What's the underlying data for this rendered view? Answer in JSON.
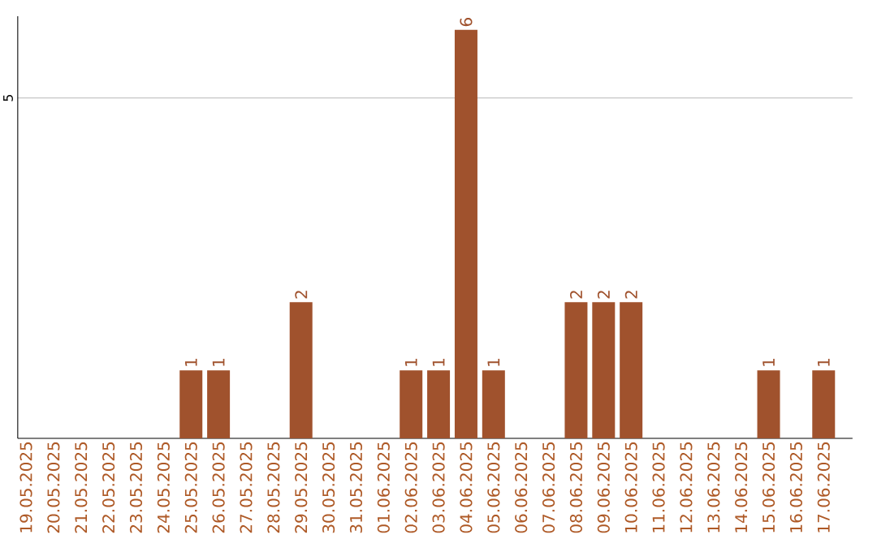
{
  "chart_data": {
    "type": "bar",
    "categories": [
      "19.05.2025",
      "20.05.2025",
      "21.05.2025",
      "22.05.2025",
      "23.05.2025",
      "24.05.2025",
      "25.05.2025",
      "26.05.2025",
      "27.05.2025",
      "28.05.2025",
      "29.05.2025",
      "30.05.2025",
      "31.05.2025",
      "01.06.2025",
      "02.06.2025",
      "03.06.2025",
      "04.06.2025",
      "05.06.2025",
      "06.06.2025",
      "07.06.2025",
      "08.06.2025",
      "09.06.2025",
      "10.06.2025",
      "11.06.2025",
      "12.06.2025",
      "13.06.2025",
      "14.06.2025",
      "15.06.2025",
      "16.06.2025",
      "17.06.2025"
    ],
    "values": [
      0,
      0,
      0,
      0,
      0,
      0,
      1,
      1,
      0,
      0,
      2,
      0,
      0,
      0,
      1,
      1,
      6,
      1,
      0,
      0,
      2,
      2,
      2,
      0,
      0,
      0,
      0,
      1,
      0,
      1
    ],
    "value_labels": [
      null,
      null,
      null,
      null,
      null,
      null,
      "1",
      "1",
      null,
      null,
      "2",
      null,
      null,
      null,
      "1",
      "1",
      "6",
      "1",
      null,
      null,
      "2",
      "2",
      "2",
      null,
      null,
      null,
      null,
      "1",
      null,
      "1"
    ],
    "color": "#a0522d",
    "ylim": [
      0,
      6.2
    ],
    "yticks": [
      5
    ],
    "grid": "y"
  }
}
